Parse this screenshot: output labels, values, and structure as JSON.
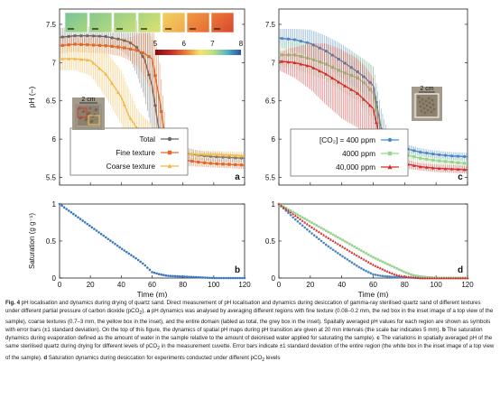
{
  "figure": {
    "label": "Fig. 4",
    "caption_html": "<b>Fig. 4</b> pH localisation and dynamics during drying of quartz sand. Direct measurement of pH localisation and dynamics during desiccation of gamma-ray sterilised quartz sand of different textures under different partial pressure of carbon dioxide (pCO<sub>2</sub>). <b>a</b> pH dynamics was analysed by averaging different regions with fine texture (0.08–0.2 mm, the red box in the inset image of a top view of the sample), coarse textures (0.7–3 mm, the yellow box in the inset), and the entire domain (labled as total, the grey box in the inset). Spaitally averaged pH values for each region are shown as symbols with error bars (±1 standard deviation). On the top of this figure, the dynamics of spatial pH maps during pH transition are given at 20 min intervals (the scale bar indicates 5 mm). <b>b</b> The saturation dynamics during evaporation defined as the amount of water in the sample relative to the amount of deionised water applied for saturating the sample). <b>c</b> The variations in spatially averaged pH of the same sterilised quartz during drying for different levels of pCO<sub>2</sub> in the measurement cuvette. Error bars indicate ±1 standard deviation of the entire region (the white box in the inset image of a top view of the sample). <b>d</b> Saturation dynamics during desiccation for experiments conducted under different pCO<sub>2</sub> levels"
  },
  "colors": {
    "total": "#666666",
    "fine": "#e06a2a",
    "coarse": "#f2b84a",
    "co2_400": "#4a86c0",
    "co2_4000": "#98d490",
    "co2_40000": "#d42d2d",
    "sat_blue": "#3a78c2"
  },
  "chart_data": [
    {
      "panel": "a",
      "type": "line",
      "xlabel": "",
      "ylabel": "pH (–)",
      "xlim": [
        0,
        120
      ],
      "ylim": [
        5.4,
        7.7
      ],
      "yticks": [
        "5.5",
        "6",
        "6.5",
        "7",
        "7.5"
      ],
      "colorbar": {
        "ticks": [
          "5",
          "6",
          "7",
          "8"
        ],
        "range": [
          5,
          8
        ]
      },
      "inset_label": "2 cm",
      "legend": [
        "Total",
        "Fine texture",
        "Coarse texture"
      ],
      "series": [
        {
          "name": "Total",
          "x": [
            0,
            10,
            20,
            30,
            40,
            45,
            50,
            55,
            60,
            65,
            70,
            80,
            90,
            100,
            110,
            120
          ],
          "values": [
            7.33,
            7.35,
            7.35,
            7.34,
            7.3,
            7.27,
            7.2,
            7.05,
            6.7,
            6.05,
            5.85,
            5.82,
            5.79,
            5.77,
            5.76,
            5.75
          ],
          "err": [
            0.12,
            0.12,
            0.12,
            0.12,
            0.14,
            0.2,
            0.35,
            0.5,
            0.6,
            0.4,
            0.1,
            0.08,
            0.06,
            0.06,
            0.05,
            0.05
          ]
        },
        {
          "name": "Fine texture",
          "x": [
            0,
            10,
            20,
            30,
            40,
            45,
            50,
            55,
            60,
            65,
            70,
            80,
            90,
            100,
            110,
            120
          ],
          "values": [
            7.22,
            7.24,
            7.23,
            7.22,
            7.2,
            7.18,
            7.16,
            7.12,
            7.05,
            6.5,
            5.8,
            5.73,
            5.7,
            5.68,
            5.67,
            5.66
          ],
          "err": [
            0.1,
            0.1,
            0.1,
            0.1,
            0.12,
            0.15,
            0.2,
            0.3,
            0.45,
            0.5,
            0.12,
            0.08,
            0.06,
            0.05,
            0.05,
            0.05
          ]
        },
        {
          "name": "Coarse texture",
          "x": [
            0,
            10,
            20,
            30,
            40,
            45,
            50,
            55,
            60,
            65,
            70,
            80,
            90,
            100,
            110,
            120
          ],
          "values": [
            7.05,
            7.05,
            7.03,
            6.85,
            6.55,
            6.3,
            6.15,
            6.08,
            6.05,
            5.95,
            5.85,
            5.82,
            5.8,
            5.8,
            5.79,
            5.78
          ],
          "err": [
            0.15,
            0.15,
            0.2,
            0.3,
            0.35,
            0.35,
            0.25,
            0.2,
            0.15,
            0.1,
            0.08,
            0.06,
            0.05,
            0.05,
            0.05,
            0.05
          ]
        }
      ]
    },
    {
      "panel": "b",
      "type": "scatter",
      "xlabel": "Time (m)",
      "ylabel": "Saturation (g g⁻¹)",
      "xlim": [
        0,
        120
      ],
      "ylim": [
        0,
        1
      ],
      "xticks": [
        "0",
        "20",
        "40",
        "60",
        "80",
        "100",
        "120"
      ],
      "yticks": [
        "0",
        "0.5",
        "1"
      ],
      "series": [
        {
          "name": "",
          "x": [
            0,
            10,
            20,
            30,
            40,
            50,
            55,
            58,
            60,
            65,
            70,
            80,
            90,
            100,
            110,
            120
          ],
          "values": [
            1.0,
            0.85,
            0.7,
            0.55,
            0.4,
            0.26,
            0.18,
            0.12,
            0.08,
            0.05,
            0.03,
            0.02,
            0.01,
            0.0,
            0.0,
            0.0
          ]
        }
      ]
    },
    {
      "panel": "c",
      "type": "line",
      "xlabel": "",
      "ylabel": "",
      "xlim": [
        0,
        120
      ],
      "ylim": [
        5.4,
        7.7
      ],
      "yticks": [
        "5.5",
        "6",
        "6.5",
        "7",
        "7.5"
      ],
      "inset_label": "2 cm",
      "legend": [
        "[CO₂] = 400 ppm",
        "4000 ppm",
        "40,000 ppm"
      ],
      "series": [
        {
          "name": "[CO₂] = 400 ppm",
          "x": [
            0,
            10,
            20,
            30,
            40,
            50,
            55,
            60,
            65,
            70,
            80,
            90,
            100,
            110,
            120
          ],
          "values": [
            7.32,
            7.3,
            7.25,
            7.15,
            7.02,
            6.88,
            6.8,
            6.7,
            6.15,
            5.95,
            5.88,
            5.83,
            5.8,
            5.78,
            5.77
          ],
          "err": [
            0.12,
            0.14,
            0.18,
            0.2,
            0.22,
            0.22,
            0.22,
            0.25,
            0.25,
            0.1,
            0.06,
            0.05,
            0.05,
            0.05,
            0.05
          ]
        },
        {
          "name": "4000 ppm",
          "x": [
            0,
            10,
            20,
            30,
            40,
            50,
            55,
            60,
            65,
            70,
            80,
            90,
            100,
            110,
            120
          ],
          "values": [
            7.1,
            7.1,
            7.05,
            6.98,
            6.88,
            6.8,
            6.72,
            6.6,
            6.05,
            5.9,
            5.8,
            5.75,
            5.72,
            5.7,
            5.68
          ],
          "err": [
            0.15,
            0.18,
            0.2,
            0.22,
            0.25,
            0.3,
            0.32,
            0.35,
            0.25,
            0.1,
            0.06,
            0.05,
            0.05,
            0.05,
            0.05
          ]
        },
        {
          "name": "40,000 ppm",
          "x": [
            0,
            10,
            20,
            30,
            40,
            50,
            55,
            60,
            65,
            70,
            80,
            90,
            100,
            110,
            120
          ],
          "values": [
            7.02,
            7.0,
            6.95,
            6.85,
            6.72,
            6.6,
            6.5,
            6.4,
            5.95,
            5.78,
            5.68,
            5.64,
            5.62,
            5.61,
            5.6
          ],
          "err": [
            0.12,
            0.2,
            0.3,
            0.4,
            0.45,
            0.45,
            0.45,
            0.4,
            0.25,
            0.1,
            0.06,
            0.05,
            0.05,
            0.05,
            0.05
          ]
        }
      ]
    },
    {
      "panel": "d",
      "type": "scatter",
      "xlabel": "Time (m)",
      "ylabel": "",
      "xlim": [
        0,
        120
      ],
      "ylim": [
        0,
        1
      ],
      "xticks": [
        "0",
        "20",
        "40",
        "60",
        "80",
        "100",
        "120"
      ],
      "yticks": [
        "0",
        "0.5",
        "1"
      ],
      "series": [
        {
          "name": "[CO₂] = 400 ppm",
          "x": [
            0,
            10,
            20,
            30,
            40,
            50,
            55,
            60,
            65,
            70,
            80,
            90,
            100,
            110,
            120
          ],
          "values": [
            1.0,
            0.8,
            0.62,
            0.45,
            0.3,
            0.16,
            0.1,
            0.05,
            0.03,
            0.02,
            0.01,
            0.0,
            0.0,
            0.0,
            0.0
          ]
        },
        {
          "name": "4000 ppm",
          "x": [
            0,
            10,
            20,
            30,
            40,
            50,
            60,
            70,
            80,
            85,
            90,
            100,
            110,
            120
          ],
          "values": [
            1.0,
            0.88,
            0.76,
            0.64,
            0.52,
            0.4,
            0.28,
            0.18,
            0.08,
            0.04,
            0.02,
            0.0,
            0.0,
            0.0
          ]
        },
        {
          "name": "40,000 ppm",
          "x": [
            0,
            10,
            20,
            30,
            40,
            50,
            60,
            70,
            75,
            80,
            90,
            100,
            110,
            120
          ],
          "values": [
            1.0,
            0.85,
            0.7,
            0.56,
            0.43,
            0.3,
            0.18,
            0.08,
            0.04,
            0.02,
            0.0,
            0.0,
            0.0,
            0.0
          ]
        }
      ]
    }
  ]
}
